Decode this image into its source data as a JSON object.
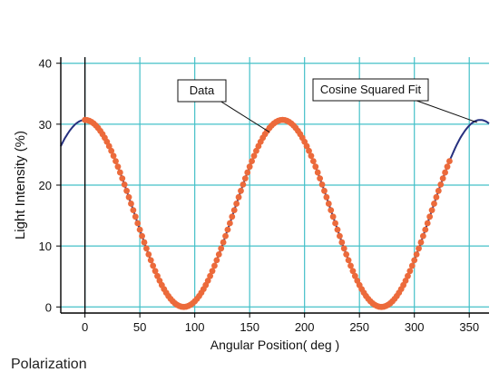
{
  "caption": "Polarization",
  "chart_data": {
    "type": "scatter",
    "xlabel": "Angular Position( deg )",
    "ylabel": "Light Intensity (%)",
    "xlim": [
      -22,
      368
    ],
    "ylim": [
      -1,
      41
    ],
    "xticks": [
      0,
      50,
      100,
      150,
      200,
      250,
      300,
      350
    ],
    "yticks": [
      0,
      10,
      20,
      30,
      40
    ],
    "grid": true,
    "colors": {
      "plot_background": "#ffffff",
      "grid": "#44c0c8",
      "data": "#ec6a3b",
      "fit": "#26307f",
      "zero_line": "#000000"
    },
    "series": [
      {
        "name": "Data",
        "kind": "points",
        "model": {
          "amplitude": 30.7,
          "phase_deg": 0,
          "function": "cos^2"
        },
        "x_start": 0,
        "x_end": 332,
        "x_step": 2
      },
      {
        "name": "Cosine Squared Fit",
        "kind": "line",
        "model": {
          "amplitude": 30.7,
          "phase_deg": 0,
          "function": "cos^2"
        },
        "x_start": -22,
        "x_end": 368
      }
    ],
    "annotations": [
      {
        "label": "Data",
        "points_to": [
          168,
          28.7
        ]
      },
      {
        "label": "Cosine Squared Fit",
        "points_to": [
          357,
          30.3
        ]
      }
    ]
  }
}
